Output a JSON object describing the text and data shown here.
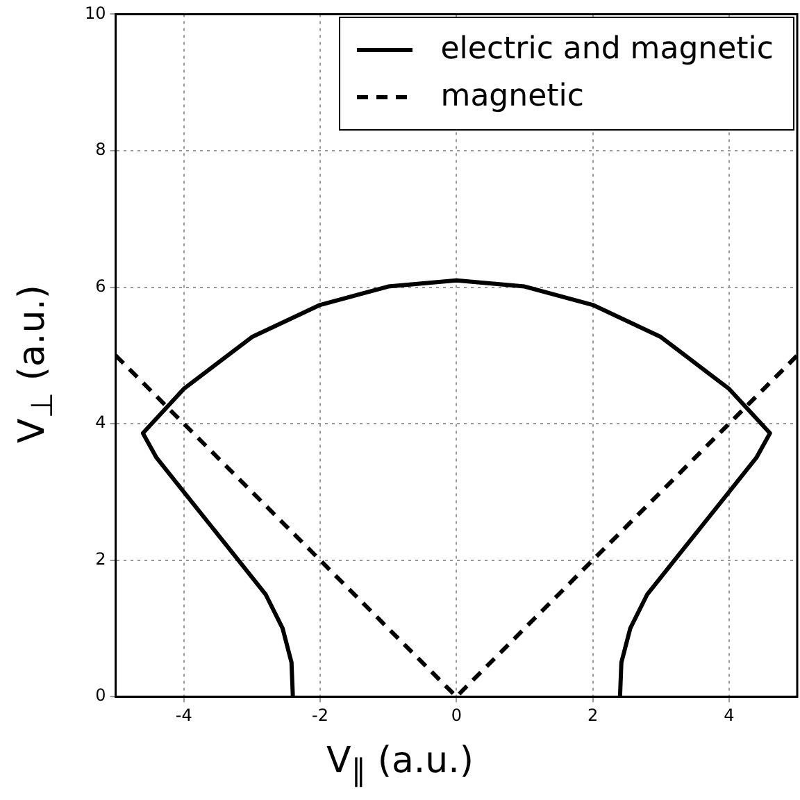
{
  "chart_data": {
    "type": "line",
    "xlabel": "V$_{∥}$ (a.u.)",
    "ylabel": "V$_{⊥}$ (a.u.)",
    "xlim": [
      -5,
      5
    ],
    "ylim": [
      0,
      10
    ],
    "xticks": [
      -4,
      -2,
      0,
      2,
      4
    ],
    "yticks": [
      0,
      2,
      4,
      6,
      8,
      10
    ],
    "grid": true,
    "legend": "top right",
    "marker": "none",
    "series": [
      {
        "name": "electric and magnetic",
        "color": "#000000",
        "line_style": "solid",
        "x": [
          -2.4,
          -2.42,
          -2.55,
          -2.8,
          -3.2,
          -3.6,
          -4.0,
          -4.4,
          -4.6,
          -4.0,
          -3.0,
          -2.0,
          -1.0,
          0,
          1.0,
          2.0,
          3.0,
          4.0,
          4.6,
          4.4,
          4.0,
          3.6,
          3.2,
          2.8,
          2.55,
          2.42,
          2.4
        ],
        "values": [
          0,
          0.5,
          1,
          1.5,
          2,
          2.5,
          3,
          3.5,
          3.86,
          4.51,
          5.27,
          5.74,
          6.01,
          6.1,
          6.01,
          5.74,
          5.27,
          4.51,
          3.86,
          3.5,
          3,
          2.5,
          2,
          1.5,
          1,
          0.5,
          0
        ]
      },
      {
        "name": "magnetic",
        "color": "#000000",
        "line_style": "dashed",
        "x": [
          -5,
          0,
          5
        ],
        "values": [
          5,
          0,
          5
        ]
      }
    ]
  }
}
